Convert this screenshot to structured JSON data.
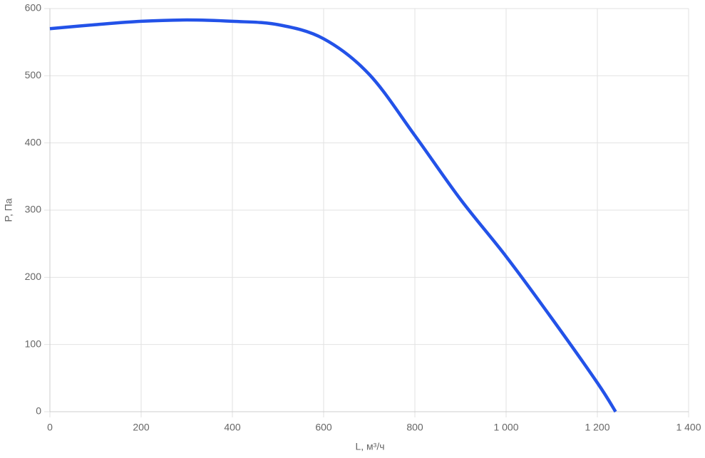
{
  "chart_data": {
    "type": "line",
    "x": [
      0,
      100,
      200,
      300,
      400,
      500,
      600,
      700,
      800,
      900,
      1000,
      1100,
      1200,
      1240
    ],
    "series": [
      {
        "name": "P",
        "color": "#2352e8",
        "values": [
          570,
          576,
          581,
          583,
          581,
          576,
          555,
          502,
          411,
          316,
          231,
          139,
          43,
          0
        ]
      }
    ],
    "xlabel": "L, м³/ч",
    "ylabel": "P, Па",
    "xlim": [
      0,
      1400
    ],
    "ylim": [
      0,
      600
    ],
    "xticks": [
      0,
      200,
      400,
      600,
      800,
      {
        "value": 1000,
        "label": "1 000"
      },
      {
        "value": 1200,
        "label": "1 200"
      },
      {
        "value": 1400,
        "label": "1 400"
      }
    ],
    "yticks": [
      0,
      100,
      200,
      300,
      400,
      500,
      600
    ],
    "grid": true
  }
}
